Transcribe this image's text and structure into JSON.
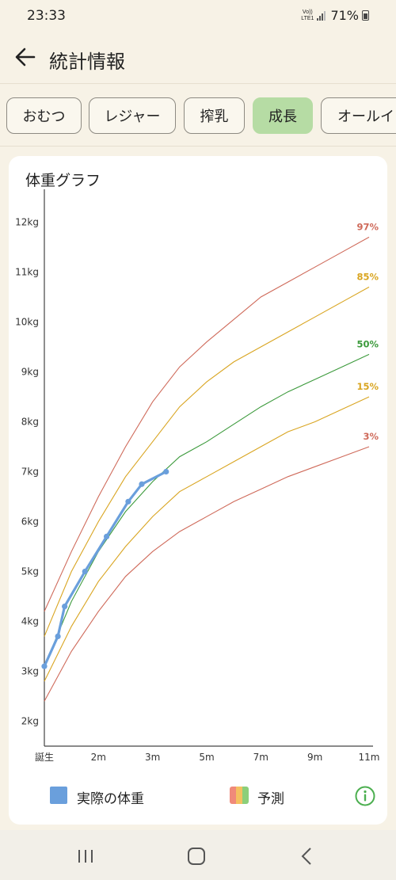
{
  "status": {
    "time": "23:33",
    "network": "Vo)) LTE1",
    "battery": "71%"
  },
  "header": {
    "title": "統計情報"
  },
  "tabs": [
    {
      "label": "おむつ",
      "active": false
    },
    {
      "label": "レジャー",
      "active": false
    },
    {
      "label": "搾乳",
      "active": false
    },
    {
      "label": "成長",
      "active": true
    },
    {
      "label": "オールイン",
      "active": false
    }
  ],
  "card": {
    "title": "体重グラフ"
  },
  "legend": {
    "actual": "実際の体重",
    "predicted": "予測"
  },
  "colors": {
    "actual": "#6a9fdc",
    "p3_p97": "#cf6a5a",
    "p15_p85": "#d9a521",
    "p50": "#3c9a3c",
    "active_tab": "#b6dca4",
    "info": "#4caf50"
  },
  "chart_data": {
    "type": "line",
    "title": "体重グラフ",
    "x_unit": "months",
    "xlim": [
      0,
      12
    ],
    "ylim": [
      1.5,
      12.5
    ],
    "x_ticks": [
      {
        "value": 0,
        "label": "誕生"
      },
      {
        "value": 2,
        "label": "2m"
      },
      {
        "value": 4,
        "label": "3m"
      },
      {
        "value": 6,
        "label": "5m"
      },
      {
        "value": 8,
        "label": "7m"
      },
      {
        "value": 10,
        "label": "9m"
      },
      {
        "value": 12,
        "label": "11m"
      }
    ],
    "y_ticks": [
      {
        "value": 2,
        "label": "2kg"
      },
      {
        "value": 3,
        "label": "3kg"
      },
      {
        "value": 4,
        "label": "4kg"
      },
      {
        "value": 5,
        "label": "5kg"
      },
      {
        "value": 6,
        "label": "6kg"
      },
      {
        "value": 7,
        "label": "7kg"
      },
      {
        "value": 8,
        "label": "8kg"
      },
      {
        "value": 9,
        "label": "9kg"
      },
      {
        "value": 10,
        "label": "10kg"
      },
      {
        "value": 11,
        "label": "11kg"
      },
      {
        "value": 12,
        "label": "12kg"
      }
    ],
    "series": [
      {
        "label": "97%",
        "color": "#cf6a5a",
        "x": [
          0,
          1,
          2,
          3,
          4,
          5,
          6,
          7,
          8,
          9,
          10,
          11,
          12
        ],
        "y": [
          4.2,
          5.4,
          6.5,
          7.5,
          8.4,
          9.1,
          9.6,
          10.05,
          10.5,
          10.8,
          11.1,
          11.4,
          11.7
        ]
      },
      {
        "label": "85%",
        "color": "#d9a521",
        "x": [
          0,
          1,
          2,
          3,
          4,
          5,
          6,
          7,
          8,
          9,
          10,
          11,
          12
        ],
        "y": [
          3.7,
          5.0,
          6.0,
          6.9,
          7.6,
          8.3,
          8.8,
          9.2,
          9.5,
          9.8,
          10.1,
          10.4,
          10.7
        ]
      },
      {
        "label": "50%",
        "color": "#3c9a3c",
        "x": [
          0,
          1,
          2,
          3,
          4,
          5,
          6,
          7,
          8,
          9,
          10,
          11,
          12
        ],
        "y": [
          3.1,
          4.4,
          5.4,
          6.2,
          6.8,
          7.3,
          7.6,
          7.95,
          8.3,
          8.6,
          8.85,
          9.1,
          9.35
        ]
      },
      {
        "label": "15%",
        "color": "#d9a521",
        "x": [
          0,
          1,
          2,
          3,
          4,
          5,
          6,
          7,
          8,
          9,
          10,
          11,
          12
        ],
        "y": [
          2.8,
          3.9,
          4.8,
          5.5,
          6.1,
          6.6,
          6.9,
          7.2,
          7.5,
          7.8,
          8.0,
          8.25,
          8.5
        ]
      },
      {
        "label": "3%",
        "color": "#cf6a5a",
        "x": [
          0,
          1,
          2,
          3,
          4,
          5,
          6,
          7,
          8,
          9,
          10,
          11,
          12
        ],
        "y": [
          2.4,
          3.4,
          4.2,
          4.9,
          5.4,
          5.8,
          6.1,
          6.4,
          6.65,
          6.9,
          7.1,
          7.3,
          7.5
        ]
      }
    ],
    "actual": {
      "color": "#6a9fdc",
      "x": [
        0,
        0.5,
        0.75,
        1.5,
        2.3,
        3.1,
        3.6,
        4.5
      ],
      "y": [
        3.1,
        3.7,
        4.3,
        5.0,
        5.7,
        6.4,
        6.75,
        7.0
      ]
    }
  }
}
